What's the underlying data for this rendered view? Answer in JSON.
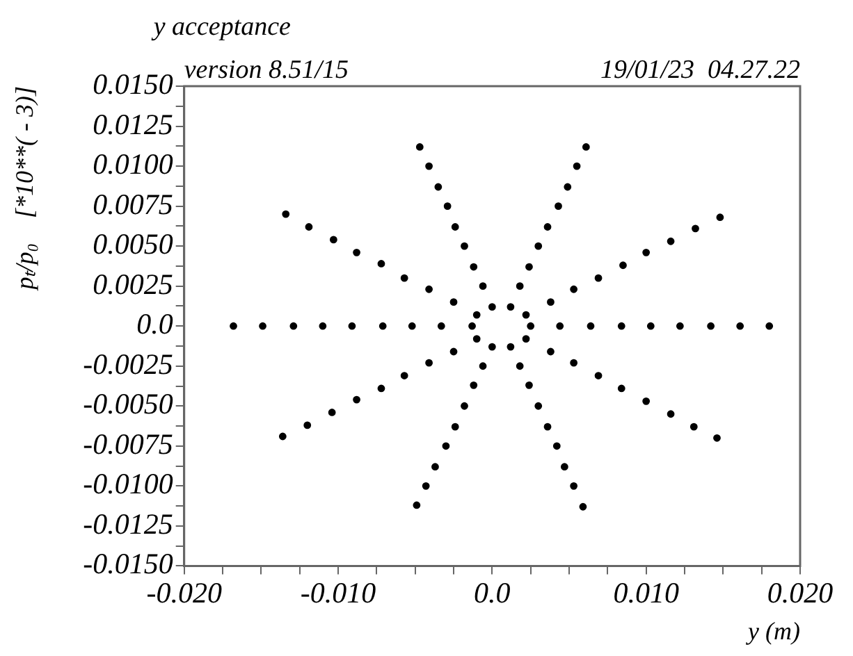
{
  "chart_data": {
    "type": "scatter",
    "title": "y acceptance",
    "subtitle": "version 8.51/15",
    "annotations": [
      "19/01/23  04.27.22"
    ],
    "xlabel": "y (m)",
    "ylabel": "pₜ/p₀    [*10**( - 3)]",
    "x": [
      -0.0168,
      -0.0149,
      -0.0129,
      -0.011,
      -0.0091,
      -0.0071,
      -0.0052,
      -0.0033,
      -0.0013,
      0.0025,
      0.0044,
      0.0064,
      0.0084,
      0.0103,
      0.0122,
      0.0142,
      0.0161,
      0.018,
      -0.0047,
      -0.0041,
      -0.0035,
      -0.0029,
      -0.0024,
      -0.0018,
      -0.0012,
      -0.0006,
      0.0061,
      0.0055,
      0.0049,
      0.0043,
      0.0036,
      0.003,
      0.0024,
      0.0018,
      -0.0134,
      -0.0119,
      -0.0103,
      -0.0088,
      -0.0072,
      -0.0057,
      -0.0041,
      -0.0025,
      0.0148,
      0.0132,
      0.0116,
      0.01,
      0.0085,
      0.0069,
      0.0053,
      0.0038,
      -0.0136,
      -0.012,
      -0.0104,
      -0.0088,
      -0.0072,
      -0.0057,
      -0.0041,
      -0.0025,
      0.0146,
      0.0131,
      0.0116,
      0.01,
      0.0084,
      0.0069,
      0.0053,
      0.0038,
      -0.0049,
      -0.0043,
      -0.0037,
      -0.003,
      -0.0024,
      -0.0018,
      -0.0012,
      -0.0006,
      0.0059,
      0.0053,
      0.0047,
      0.0042,
      0.0036,
      0.003,
      0.0024,
      0.0018,
      0.0,
      0.0012,
      -0.001,
      0.0022,
      -0.001,
      0.0022,
      0.0,
      0.0012
    ],
    "series": [
      {
        "color": "#000000",
        "values": [
          0,
          0,
          0,
          0,
          0,
          0,
          0,
          0,
          0,
          0,
          0,
          0,
          0,
          0,
          0,
          0,
          0,
          0,
          0.0112,
          0.01,
          0.0087,
          0.0075,
          0.0062,
          0.005,
          0.0037,
          0.0025,
          0.0112,
          0.01,
          0.0087,
          0.0075,
          0.0062,
          0.005,
          0.0037,
          0.0025,
          0.007,
          0.0062,
          0.0054,
          0.0046,
          0.0039,
          0.003,
          0.0023,
          0.0015,
          0.0068,
          0.0061,
          0.0053,
          0.0046,
          0.0038,
          0.003,
          0.0023,
          0.0015,
          -0.0069,
          -0.0062,
          -0.0054,
          -0.0046,
          -0.0039,
          -0.0031,
          -0.0023,
          -0.0016,
          -0.007,
          -0.0063,
          -0.0055,
          -0.0047,
          -0.0039,
          -0.0031,
          -0.0023,
          -0.0016,
          -0.0112,
          -0.01,
          -0.0088,
          -0.0075,
          -0.0063,
          -0.005,
          -0.0037,
          -0.0025,
          -0.0113,
          -0.01,
          -0.0088,
          -0.0075,
          -0.0063,
          -0.005,
          -0.0037,
          -0.0025,
          0.0012,
          0.0012,
          0.0007,
          0.0007,
          -0.0008,
          -0.0008,
          -0.0013,
          -0.0013
        ]
      }
    ],
    "xlim": [
      -0.02,
      0.02
    ],
    "xticks": [
      {
        "value": -0.02,
        "label": "-0.020"
      },
      {
        "value": -0.0175,
        "label": null
      },
      {
        "value": -0.015,
        "label": null
      },
      {
        "value": -0.0125,
        "label": null
      },
      {
        "value": -0.01,
        "label": "-0.010"
      },
      {
        "value": -0.0075,
        "label": null
      },
      {
        "value": -0.005,
        "label": null
      },
      {
        "value": -0.0025,
        "label": null
      },
      {
        "value": 0,
        "label": "0.0"
      },
      {
        "value": 0.0025,
        "label": null
      },
      {
        "value": 0.005,
        "label": null
      },
      {
        "value": 0.0075,
        "label": null
      },
      {
        "value": 0.01,
        "label": "0.010"
      },
      {
        "value": 0.0125,
        "label": null
      },
      {
        "value": 0.015,
        "label": null
      },
      {
        "value": 0.0175,
        "label": null
      },
      {
        "value": 0.02,
        "label": "0.020"
      }
    ],
    "ylim": [
      -0.015,
      0.015
    ],
    "yticks": [
      {
        "value": -0.015,
        "label": "-0.0150"
      },
      {
        "value": -0.01375,
        "label": null
      },
      {
        "value": -0.0125,
        "label": "-0.0125"
      },
      {
        "value": -0.01125,
        "label": null
      },
      {
        "value": -0.01,
        "label": "-0.0100"
      },
      {
        "value": -0.00875,
        "label": null
      },
      {
        "value": -0.0075,
        "label": "-0.0075"
      },
      {
        "value": -0.00625,
        "label": null
      },
      {
        "value": -0.005,
        "label": "-0.0050"
      },
      {
        "value": -0.00375,
        "label": null
      },
      {
        "value": -0.0025,
        "label": "-0.0025"
      },
      {
        "value": -0.00125,
        "label": null
      },
      {
        "value": 0,
        "label": "0.0"
      },
      {
        "value": 0.00125,
        "label": null
      },
      {
        "value": 0.0025,
        "label": "0.0025"
      },
      {
        "value": 0.00375,
        "label": null
      },
      {
        "value": 0.005,
        "label": "0.0050"
      },
      {
        "value": 0.00625,
        "label": null
      },
      {
        "value": 0.0075,
        "label": "0.0075"
      },
      {
        "value": 0.00875,
        "label": null
      },
      {
        "value": 0.01,
        "label": "0.0100"
      },
      {
        "value": 0.01125,
        "label": null
      },
      {
        "value": 0.0125,
        "label": "0.0125"
      },
      {
        "value": 0.01375,
        "label": null
      },
      {
        "value": 0.015,
        "label": "0.0150"
      }
    ],
    "grid": false,
    "legend": false,
    "marker": "circle"
  }
}
